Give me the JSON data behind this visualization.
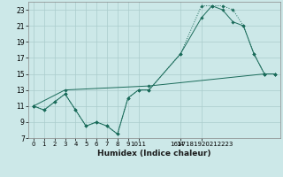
{
  "xlabel": "Humidex (Indice chaleur)",
  "background_color": "#cce8e8",
  "grid_color": "#aacccc",
  "line_color": "#1a6b5a",
  "xlim": [
    -0.5,
    23.5
  ],
  "ylim": [
    7,
    24
  ],
  "yticks": [
    7,
    9,
    11,
    13,
    15,
    17,
    19,
    21,
    23
  ],
  "xtick_positions": [
    0,
    1,
    2,
    3,
    4,
    5,
    6,
    7,
    8,
    9,
    10,
    14,
    16
  ],
  "xtick_labels": [
    "0",
    "1",
    "2",
    "3",
    "4",
    "5",
    "6",
    "7",
    "8",
    "9",
    "1011",
    "14",
    "1617181920212223"
  ],
  "series1_x": [
    0,
    1,
    2,
    3,
    4,
    5,
    6,
    7,
    8,
    9,
    10,
    11,
    14,
    16,
    17,
    18,
    19,
    20,
    21,
    22,
    23
  ],
  "series1_y": [
    11,
    10.5,
    11.5,
    12.5,
    10.5,
    8.5,
    9,
    8.5,
    7.5,
    12,
    13,
    13,
    17.5,
    23.5,
    23.5,
    23.5,
    23,
    21,
    17.5,
    15,
    15
  ],
  "series2_x": [
    0,
    1,
    2,
    3,
    4,
    5,
    6,
    7,
    8,
    9,
    10,
    11,
    14,
    16,
    17,
    18,
    19,
    20,
    21,
    22,
    23
  ],
  "series2_y": [
    11,
    10.5,
    11.5,
    12.5,
    10.5,
    8.5,
    9,
    8.5,
    7.5,
    12,
    13,
    13,
    17.5,
    22,
    23.5,
    23,
    21.5,
    21,
    17.5,
    15,
    15
  ],
  "series3_x": [
    0,
    3,
    11,
    22,
    23
  ],
  "series3_y": [
    11,
    13,
    13.5,
    15,
    15
  ]
}
